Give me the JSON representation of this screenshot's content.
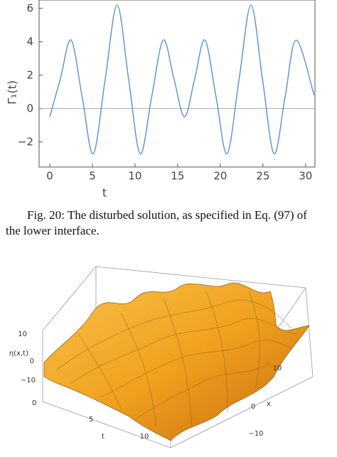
{
  "chart_data": {
    "type": "line",
    "x_label": "t",
    "y_label": "Γ₁(t)",
    "xlim": [
      -1.25,
      31.1
    ],
    "ylim": [
      -3.5,
      6.5
    ],
    "xticks": [
      0,
      5,
      10,
      15,
      20,
      25,
      30
    ],
    "yticks": [
      {
        "value": -2,
        "label": "−2"
      },
      0,
      2,
      4,
      6
    ],
    "series": [
      {
        "color": "#5b8fcb",
        "x": [
          0,
          1.25,
          2.5,
          3.8,
          5.1,
          6.5,
          7.9,
          9.25,
          10.6,
          11.95,
          13.3,
          14.55,
          15.8,
          17,
          18.2,
          19.5,
          20.8,
          22.2,
          23.6,
          24.95,
          26.3,
          27.6,
          28.9,
          31
        ],
        "values": [
          -0.5,
          1.8,
          4.1,
          0.7,
          -2.7,
          1.75,
          6.2,
          1.75,
          -2.7,
          0.7,
          4.1,
          1.8,
          -0.5,
          1.8,
          4.1,
          0.7,
          -2.7,
          1.75,
          6.2,
          1.75,
          -2.7,
          0.7,
          4.1,
          0.8
        ]
      }
    ]
  },
  "caption": {
    "line1": "Fig. 20: The disturbed solution, as specified in Eq. (97) of",
    "line2": "the lower interface."
  },
  "figure2": {
    "z_label": "η(x,t)",
    "z_ticks": [
      "10",
      "0",
      "−10"
    ],
    "t_label": "t",
    "t_ticks": [
      "0",
      "5",
      "10"
    ],
    "x_label": "x",
    "x_ticks": [
      "10",
      "0",
      "−10"
    ]
  }
}
